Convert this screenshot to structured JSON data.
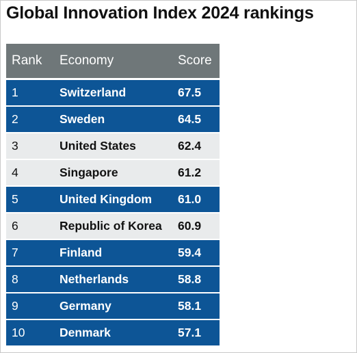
{
  "title": "Global Innovation Index 2024 rankings",
  "colors": {
    "header_bg": "#6f7779",
    "blue_bg": "#0d5596",
    "gray_bg": "#e9ebec",
    "header_text": "#ffffff",
    "blue_text": "#ffffff",
    "gray_text": "#111111"
  },
  "columns": {
    "rank": "Rank",
    "economy": "Economy",
    "score": "Score"
  },
  "rows": [
    {
      "rank": "1",
      "economy": "Switzerland",
      "score": "67.5",
      "style": "blue"
    },
    {
      "rank": "2",
      "economy": "Sweden",
      "score": "64.5",
      "style": "blue"
    },
    {
      "rank": "3",
      "economy": "United States",
      "score": "62.4",
      "style": "gray"
    },
    {
      "rank": "4",
      "economy": "Singapore",
      "score": "61.2",
      "style": "gray"
    },
    {
      "rank": "5",
      "economy": "United Kingdom",
      "score": "61.0",
      "style": "blue"
    },
    {
      "rank": "6",
      "economy": "Republic of Korea",
      "score": "60.9",
      "style": "gray"
    },
    {
      "rank": "7",
      "economy": "Finland",
      "score": "59.4",
      "style": "blue"
    },
    {
      "rank": "8",
      "economy": "Netherlands",
      "score": "58.8",
      "style": "blue"
    },
    {
      "rank": "9",
      "economy": "Germany",
      "score": "58.1",
      "style": "blue"
    },
    {
      "rank": "10",
      "economy": "Denmark",
      "score": "57.1",
      "style": "blue"
    }
  ]
}
